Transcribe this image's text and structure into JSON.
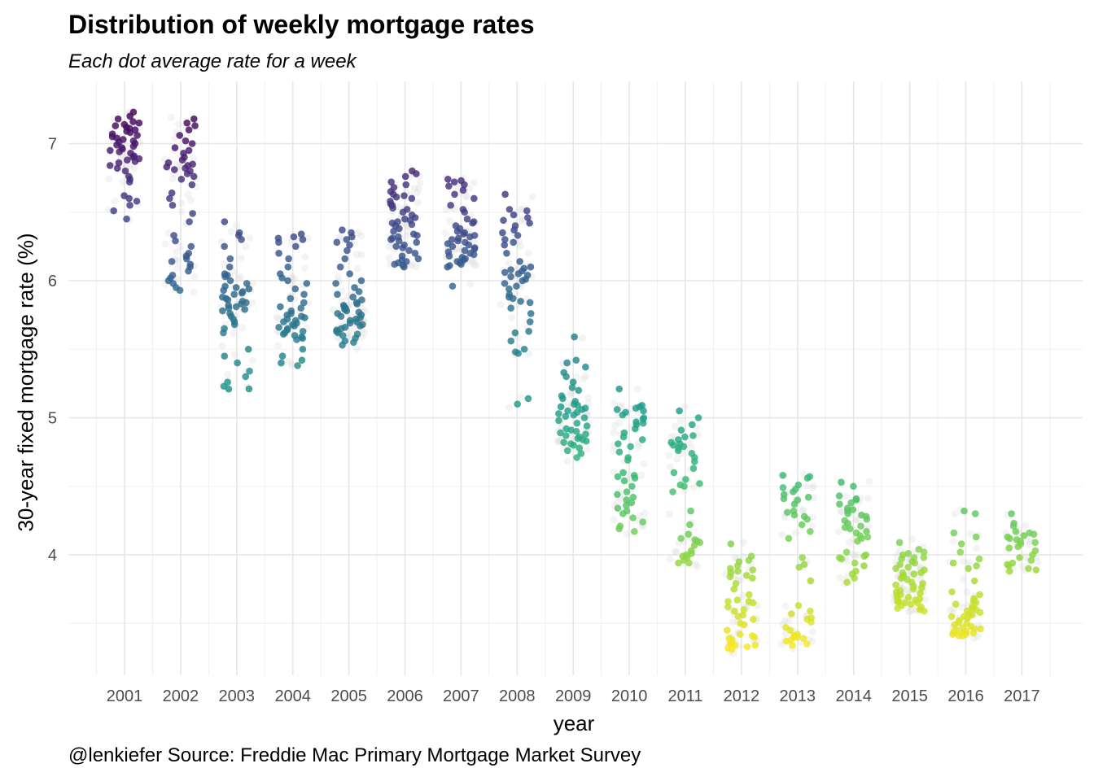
{
  "chart_data": {
    "type": "scatter",
    "title": "Distribution of weekly mortgage rates",
    "subtitle": "Each dot average rate for a week",
    "caption": "@lenkiefer Source: Freddie Mac Primary Mortgage Market Survey",
    "xlabel": "year",
    "ylabel": "30-year fixed mortgage rate (%)",
    "x_ticks": [
      "2001",
      "2002",
      "2003",
      "2004",
      "2005",
      "2006",
      "2007",
      "2008",
      "2009",
      "2010",
      "2011",
      "2012",
      "2013",
      "2014",
      "2015",
      "2016",
      "2017"
    ],
    "y_ticks": [
      4,
      5,
      6,
      7
    ],
    "ylim": [
      3.15,
      7.4
    ],
    "grid": true,
    "color_scale": "viridis (by rate, high = purple, low = yellow)",
    "series": [
      {
        "year": "2001",
        "values": [
          7.23,
          7.2,
          7.18,
          7.16,
          7.15,
          7.14,
          7.13,
          7.12,
          7.11,
          7.1,
          7.09,
          7.08,
          7.07,
          7.06,
          7.05,
          7.04,
          7.03,
          7.02,
          7.01,
          7.0,
          6.99,
          6.98,
          6.97,
          6.96,
          6.95,
          6.94,
          6.93,
          6.91,
          6.9,
          6.89,
          6.88,
          6.87,
          6.86,
          6.84,
          6.82,
          6.8,
          6.76,
          6.74,
          6.72,
          6.62,
          6.6,
          6.58,
          6.55,
          6.51,
          6.45
        ]
      },
      {
        "year": "2002",
        "values": [
          7.18,
          7.15,
          7.13,
          7.1,
          7.06,
          7.02,
          7.0,
          6.97,
          6.95,
          6.93,
          6.9,
          6.88,
          6.86,
          6.85,
          6.84,
          6.83,
          6.82,
          6.81,
          6.8,
          6.78,
          6.76,
          6.74,
          6.7,
          6.64,
          6.6,
          6.55,
          6.49,
          6.43,
          6.33,
          6.29,
          6.25,
          6.2,
          6.18,
          6.16,
          6.14,
          6.12,
          6.1,
          6.07,
          6.04,
          6.02,
          6.0,
          5.98,
          5.95,
          5.93
        ]
      },
      {
        "year": "2003",
        "values": [
          6.43,
          6.35,
          6.33,
          6.3,
          6.25,
          6.16,
          6.1,
          6.05,
          6.04,
          6.03,
          6.0,
          5.98,
          5.96,
          5.95,
          5.94,
          5.93,
          5.92,
          5.91,
          5.9,
          5.88,
          5.87,
          5.86,
          5.85,
          5.84,
          5.83,
          5.82,
          5.81,
          5.8,
          5.79,
          5.78,
          5.76,
          5.74,
          5.72,
          5.7,
          5.68,
          5.65,
          5.62,
          5.5,
          5.45,
          5.4,
          5.34,
          5.3,
          5.26,
          5.23,
          5.21,
          5.21
        ]
      },
      {
        "year": "2004",
        "values": [
          6.34,
          6.32,
          6.31,
          6.3,
          6.28,
          6.25,
          6.2,
          6.16,
          6.1,
          6.05,
          6.02,
          6.0,
          5.98,
          5.94,
          5.9,
          5.87,
          5.84,
          5.81,
          5.8,
          5.78,
          5.76,
          5.75,
          5.74,
          5.73,
          5.72,
          5.71,
          5.7,
          5.69,
          5.68,
          5.67,
          5.66,
          5.65,
          5.64,
          5.63,
          5.62,
          5.61,
          5.6,
          5.59,
          5.58,
          5.57,
          5.5,
          5.45,
          5.42,
          5.4,
          5.38
        ]
      },
      {
        "year": "2005",
        "values": [
          6.37,
          6.35,
          6.32,
          6.3,
          6.28,
          6.26,
          6.22,
          6.16,
          6.1,
          6.05,
          6.0,
          5.98,
          5.95,
          5.92,
          5.9,
          5.88,
          5.86,
          5.84,
          5.83,
          5.82,
          5.81,
          5.8,
          5.79,
          5.78,
          5.77,
          5.76,
          5.75,
          5.74,
          5.73,
          5.72,
          5.71,
          5.7,
          5.69,
          5.68,
          5.67,
          5.66,
          5.65,
          5.64,
          5.63,
          5.62,
          5.61,
          5.6,
          5.58,
          5.56,
          5.55,
          5.53
        ]
      },
      {
        "year": "2006",
        "values": [
          6.8,
          6.78,
          6.76,
          6.72,
          6.7,
          6.68,
          6.65,
          6.63,
          6.62,
          6.61,
          6.6,
          6.58,
          6.56,
          6.55,
          6.53,
          6.52,
          6.5,
          6.48,
          6.46,
          6.45,
          6.44,
          6.43,
          6.42,
          6.41,
          6.4,
          6.38,
          6.36,
          6.34,
          6.33,
          6.32,
          6.31,
          6.3,
          6.29,
          6.28,
          6.26,
          6.25,
          6.24,
          6.22,
          6.2,
          6.18,
          6.16,
          6.15,
          6.14,
          6.13,
          6.12,
          6.11,
          6.1
        ]
      },
      {
        "year": "2007",
        "values": [
          6.74,
          6.73,
          6.72,
          6.7,
          6.69,
          6.66,
          6.63,
          6.6,
          6.55,
          6.52,
          6.5,
          6.45,
          6.43,
          6.42,
          6.4,
          6.38,
          6.36,
          6.35,
          6.34,
          6.33,
          6.32,
          6.31,
          6.3,
          6.29,
          6.28,
          6.27,
          6.26,
          6.25,
          6.24,
          6.23,
          6.22,
          6.21,
          6.2,
          6.19,
          6.18,
          6.17,
          6.16,
          6.15,
          6.14,
          6.13,
          6.12,
          6.11,
          6.1,
          5.96
        ]
      },
      {
        "year": "2008",
        "values": [
          6.63,
          6.52,
          6.51,
          6.48,
          6.46,
          6.44,
          6.42,
          6.4,
          6.37,
          6.35,
          6.33,
          6.3,
          6.28,
          6.26,
          6.2,
          6.14,
          6.1,
          6.09,
          6.08,
          6.07,
          6.06,
          6.05,
          6.04,
          6.03,
          6.01,
          6.0,
          5.98,
          5.96,
          5.94,
          5.9,
          5.88,
          5.87,
          5.85,
          5.84,
          5.8,
          5.76,
          5.7,
          5.63,
          5.62,
          5.56,
          5.5,
          5.48,
          5.47,
          5.14,
          5.1
        ]
      },
      {
        "year": "2009",
        "values": [
          5.59,
          5.42,
          5.4,
          5.37,
          5.33,
          5.3,
          5.26,
          5.22,
          5.2,
          5.16,
          5.14,
          5.12,
          5.1,
          5.09,
          5.08,
          5.07,
          5.06,
          5.05,
          5.04,
          5.03,
          5.02,
          5.01,
          5.0,
          4.98,
          4.96,
          4.94,
          4.92,
          4.91,
          4.9,
          4.89,
          4.88,
          4.87,
          4.86,
          4.85,
          4.84,
          4.83,
          4.82,
          4.81,
          4.8,
          4.78,
          4.76,
          4.74,
          4.71
        ]
      },
      {
        "year": "2010",
        "values": [
          5.21,
          5.09,
          5.08,
          5.07,
          5.06,
          5.05,
          5.04,
          5.02,
          5.0,
          4.99,
          4.97,
          4.96,
          4.95,
          4.92,
          4.89,
          4.86,
          4.84,
          4.81,
          4.79,
          4.75,
          4.71,
          4.69,
          4.6,
          4.58,
          4.57,
          4.56,
          4.54,
          4.5,
          4.46,
          4.44,
          4.42,
          4.4,
          4.38,
          4.36,
          4.34,
          4.32,
          4.3,
          4.27,
          4.24,
          4.21,
          4.19,
          4.17
        ]
      },
      {
        "year": "2011",
        "values": [
          5.05,
          5.0,
          4.95,
          4.91,
          4.87,
          4.86,
          4.84,
          4.82,
          4.81,
          4.8,
          4.79,
          4.78,
          4.76,
          4.74,
          4.71,
          4.68,
          4.63,
          4.6,
          4.55,
          4.52,
          4.51,
          4.5,
          4.46,
          4.32,
          4.22,
          4.15,
          4.12,
          4.11,
          4.1,
          4.09,
          4.07,
          4.03,
          4.01,
          4.0,
          3.99,
          3.98,
          3.96,
          3.94,
          3.94
        ]
      },
      {
        "year": "2012",
        "values": [
          4.08,
          3.99,
          3.96,
          3.95,
          3.92,
          3.9,
          3.89,
          3.88,
          3.87,
          3.85,
          3.84,
          3.83,
          3.79,
          3.75,
          3.71,
          3.67,
          3.66,
          3.66,
          3.65,
          3.62,
          3.6,
          3.59,
          3.56,
          3.55,
          3.53,
          3.5,
          3.49,
          3.45,
          3.42,
          3.41,
          3.4,
          3.39,
          3.38,
          3.36,
          3.35,
          3.35,
          3.34,
          3.34,
          3.33,
          3.32,
          3.31
        ]
      },
      {
        "year": "2013",
        "values": [
          4.58,
          4.57,
          4.56,
          4.51,
          4.49,
          4.48,
          4.46,
          4.44,
          4.42,
          4.41,
          4.4,
          4.37,
          4.32,
          4.31,
          4.29,
          4.28,
          4.26,
          4.22,
          4.17,
          4.12,
          3.98,
          3.93,
          3.91,
          3.81,
          3.63,
          3.59,
          3.57,
          3.54,
          3.53,
          3.51,
          3.47,
          3.45,
          3.42,
          3.41,
          3.4,
          3.4,
          3.39,
          3.38,
          3.37,
          3.35,
          3.34
        ]
      },
      {
        "year": "2014",
        "values": [
          4.53,
          4.5,
          4.43,
          4.41,
          4.4,
          4.38,
          4.37,
          4.34,
          4.33,
          4.32,
          4.3,
          4.29,
          4.28,
          4.26,
          4.25,
          4.23,
          4.21,
          4.2,
          4.19,
          4.17,
          4.16,
          4.14,
          4.13,
          4.12,
          4.1,
          4.02,
          4.0,
          3.99,
          3.98,
          3.97,
          3.94,
          3.92,
          3.88,
          3.86,
          3.83,
          3.8
        ]
      },
      {
        "year": "2015",
        "values": [
          4.09,
          4.04,
          4.02,
          4.0,
          3.98,
          3.97,
          3.95,
          3.93,
          3.91,
          3.89,
          3.87,
          3.86,
          3.85,
          3.84,
          3.83,
          3.82,
          3.8,
          3.79,
          3.78,
          3.77,
          3.76,
          3.75,
          3.73,
          3.71,
          3.7,
          3.69,
          3.68,
          3.67,
          3.66,
          3.65,
          3.65,
          3.64,
          3.63,
          3.62,
          3.61,
          3.6,
          3.59,
          3.66,
          3.68,
          3.72,
          3.74,
          3.87,
          3.9,
          3.94,
          3.98,
          4.01
        ]
      },
      {
        "year": "2016",
        "values": [
          4.32,
          4.3,
          4.16,
          4.13,
          4.08,
          4.02,
          3.97,
          3.94,
          3.92,
          3.9,
          3.81,
          3.73,
          3.71,
          3.68,
          3.66,
          3.65,
          3.64,
          3.62,
          3.61,
          3.6,
          3.59,
          3.58,
          3.57,
          3.56,
          3.55,
          3.54,
          3.52,
          3.51,
          3.49,
          3.48,
          3.47,
          3.46,
          3.45,
          3.44,
          3.43,
          3.43,
          3.42,
          3.42,
          3.41,
          3.41,
          3.44,
          3.46,
          3.5,
          3.55
        ]
      },
      {
        "year": "2017",
        "values": [
          4.3,
          4.23,
          4.21,
          4.17,
          4.16,
          4.15,
          4.14,
          4.13,
          4.12,
          4.11,
          4.1,
          4.09,
          4.08,
          4.06,
          4.05,
          4.03,
          4.0,
          3.98,
          3.96,
          3.94,
          3.93,
          3.92,
          3.9,
          3.89,
          3.88
        ]
      }
    ]
  }
}
